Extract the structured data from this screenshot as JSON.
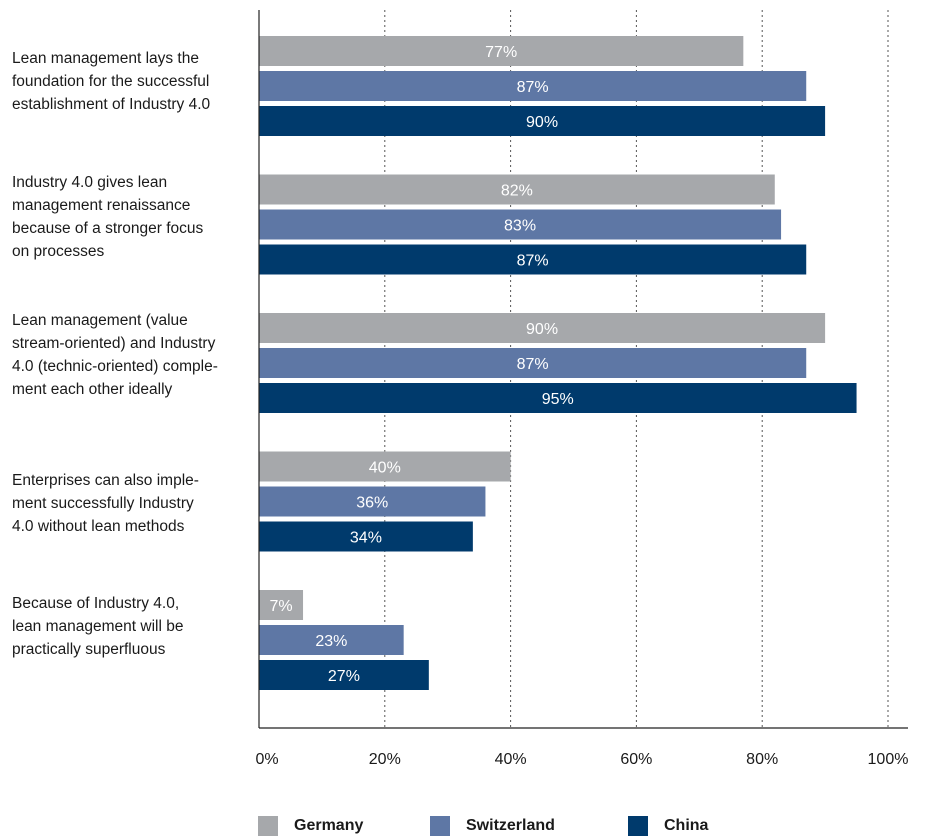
{
  "chart_data": {
    "type": "bar",
    "orientation": "horizontal",
    "categories": [
      "Lean management lays the foundation for the successful establishment of Industry 4.0",
      "Industry 4.0 gives lean management renaissance because of a stronger focus on processes",
      "Lean management (value stream-oriented) and Industry 4.0 (technic-oriented) comple-ment each other ideally",
      "Enterprises can also imple-ment successfully Industry 4.0 without lean methods",
      "Because of Industry 4.0, lean management will be practically superfluous"
    ],
    "category_lines": [
      [
        "Lean management lays the",
        "foundation for the successful",
        "establishment of Industry 4.0"
      ],
      [
        "Industry 4.0 gives lean",
        "management renaissance",
        "because of a stronger focus",
        "on processes"
      ],
      [
        "Lean management (value",
        "stream-oriented) and Industry",
        "4.0 (technic-oriented) comple-",
        "ment each other ideally"
      ],
      [
        "Enterprises can also imple-",
        "ment successfully Industry",
        "4.0 without lean methods"
      ],
      [
        "Because of Industry 4.0,",
        "lean management will be",
        "practically superfluous"
      ]
    ],
    "series": [
      {
        "name": "Germany",
        "color": "#a6a8ab",
        "values": [
          77,
          82,
          90,
          40,
          7
        ],
        "labels": [
          "77%",
          "82%",
          "90%",
          "40%",
          "7%"
        ]
      },
      {
        "name": "Switzerland",
        "color": "#5e77a5",
        "values": [
          87,
          83,
          87,
          36,
          23
        ],
        "labels": [
          "87%",
          "83%",
          "87%",
          "36%",
          "23%"
        ]
      },
      {
        "name": "China",
        "color": "#003a6c",
        "values": [
          90,
          87,
          95,
          34,
          27
        ],
        "labels": [
          "90%",
          "87%",
          "95%",
          "34%",
          "27%"
        ]
      }
    ],
    "xlim": [
      0,
      100
    ],
    "xticks": [
      0,
      20,
      40,
      60,
      80,
      100
    ],
    "xtick_labels": [
      "0%",
      "20%",
      "40%",
      "60%",
      "80%",
      "100%"
    ],
    "grid": "vertical-dotted",
    "legend_position": "bottom"
  }
}
